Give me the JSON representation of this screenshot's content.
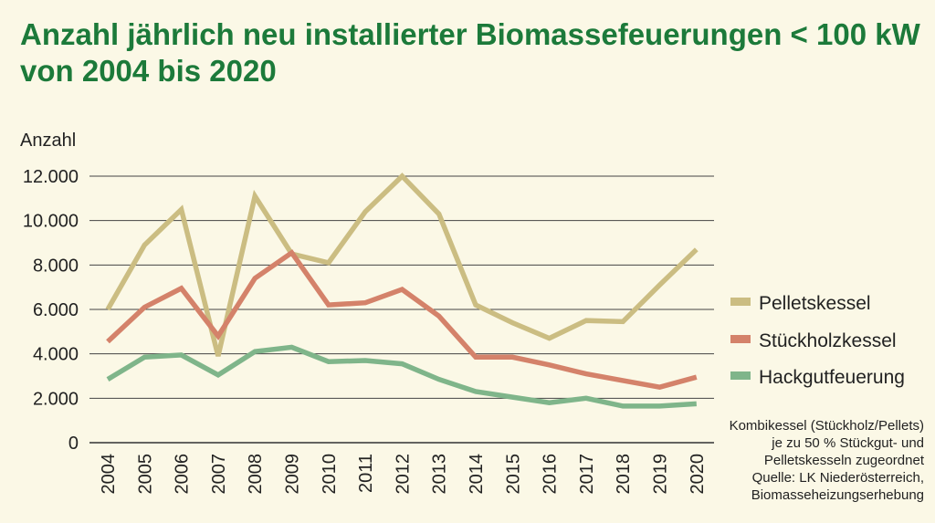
{
  "title_line1": "Anzahl jährlich neu installierter Biomassefeuerungen < 100 kW",
  "title_line2": "von 2004 bis 2020",
  "note": {
    "line1": "Kombikessel (Stückholz/Pellets)",
    "line2": "je zu 50 % Stückgut- und",
    "line3": "Pelletskesseln zugeordnet",
    "line4": "Quelle: LK Niederösterreich,",
    "line5": "Biomasseheizungserhebung"
  },
  "colors": {
    "title": "#1c7a3a",
    "background": "#fbf8e6",
    "pellets": "#cbbd82",
    "stueckholz": "#d4826a",
    "hackgut": "#7fb58a"
  },
  "chart_data": {
    "type": "line",
    "title": "Anzahl jährlich neu installierter Biomassefeuerungen < 100 kW von 2004 bis 2020",
    "ylabel": "Anzahl",
    "xlabel": "",
    "ylim": [
      0,
      12000
    ],
    "y_ticks": [
      0,
      2000,
      4000,
      6000,
      8000,
      10000,
      12000
    ],
    "y_tick_labels": [
      "0",
      "2.000",
      "4.000",
      "6.000",
      "8.000",
      "10.000",
      "12.000"
    ],
    "grid": true,
    "legend_position": "right",
    "categories": [
      "2004",
      "2005",
      "2006",
      "2007",
      "2008",
      "2009",
      "2010",
      "2011",
      "2012",
      "2013",
      "2014",
      "2015",
      "2016",
      "2017",
      "2018",
      "2019",
      "2020"
    ],
    "series": [
      {
        "name": "Pelletskessel",
        "color": "#cbbd82",
        "values": [
          6000,
          8900,
          10500,
          3900,
          11100,
          8500,
          8100,
          10400,
          12000,
          10300,
          6200,
          5400,
          4700,
          5500,
          5450,
          7100,
          8700
        ]
      },
      {
        "name": "Stückholzkessel",
        "color": "#d4826a",
        "values": [
          4550,
          6100,
          6950,
          4800,
          7400,
          8550,
          6200,
          6300,
          6900,
          5700,
          3850,
          3850,
          3500,
          3100,
          2800,
          2500,
          2950
        ]
      },
      {
        "name": "Hackgutfeuerung",
        "color": "#7fb58a",
        "values": [
          2850,
          3850,
          3950,
          3050,
          4100,
          4300,
          3650,
          3700,
          3550,
          2850,
          2300,
          2050,
          1800,
          2000,
          1650,
          1650,
          1750
        ]
      }
    ]
  }
}
